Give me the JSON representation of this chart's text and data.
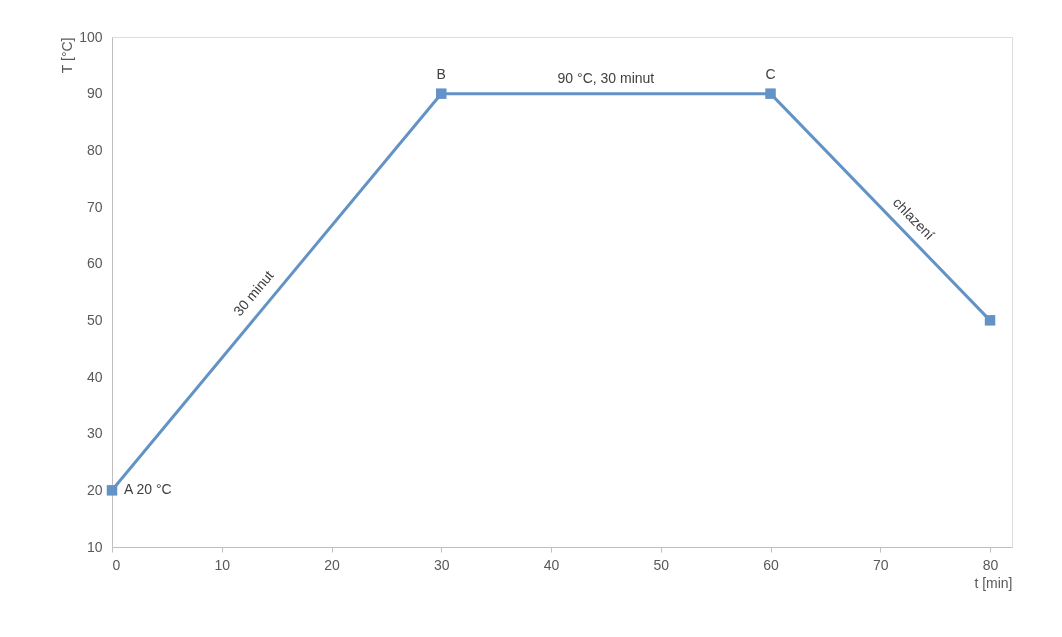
{
  "chart_data": {
    "type": "line",
    "xlabel": "t [min]",
    "ylabel": "T [°C]",
    "x": [
      0,
      30,
      60,
      80
    ],
    "series": [
      {
        "color": "#6393c6",
        "values": [
          20,
          90,
          90,
          50
        ]
      }
    ],
    "xlim": [
      0,
      82
    ],
    "xticks": [
      0,
      10,
      20,
      30,
      40,
      50,
      60,
      70,
      80
    ],
    "ylim": [
      10,
      100
    ],
    "yticks": [
      10,
      20,
      30,
      40,
      50,
      60,
      70,
      80,
      90,
      100
    ],
    "grid": false,
    "marker": "square",
    "line_style": "solid",
    "annotations": [
      {
        "text": "A 20 °C",
        "x": 0,
        "y": 20
      },
      {
        "text": "B",
        "x": 30,
        "y": 90
      },
      {
        "text": "90 °C, 30 minut",
        "x": 45,
        "y": 90
      },
      {
        "text": "C",
        "x": 60,
        "y": 90
      },
      {
        "text": "30 minut",
        "x": 14,
        "y": 53
      },
      {
        "text": "chlazení",
        "x": 72,
        "y": 66
      }
    ]
  }
}
